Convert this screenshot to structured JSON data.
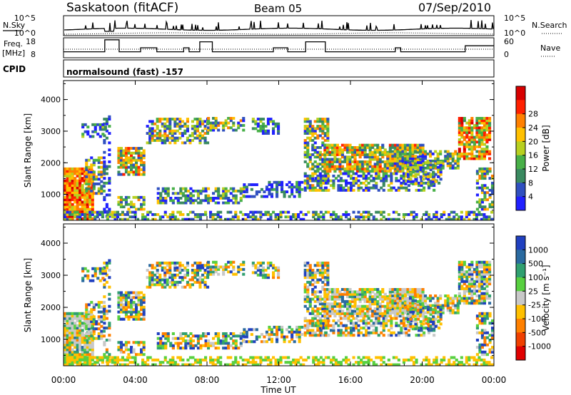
{
  "header": {
    "station": "Saskatoon (fitACF)",
    "beam": "Beam 05",
    "date": "07/Sep/2010"
  },
  "nsky_panel": {
    "left_label": "N.Sky",
    "right_label": "N.Search",
    "left_ticks": [
      "10^5",
      "10^0"
    ],
    "right_ticks": [
      "10^5",
      "10^0"
    ]
  },
  "freq_panel": {
    "left_label_top": "Freq.",
    "left_label_bottom": "[MHz]",
    "right_label": "Nave",
    "left_ticks": [
      "18",
      "8"
    ],
    "right_ticks": [
      "60",
      "0"
    ]
  },
  "cpid": {
    "label": "CPID",
    "text": "normalsound (fast) -157"
  },
  "chart_data": [
    {
      "type": "heatmap",
      "quantity": "power",
      "ylabel": "Slant Range [km]",
      "xlabel": "",
      "ylim": [
        180,
        4600
      ],
      "y_ticks": [
        "1000",
        "2000",
        "3000",
        "4000"
      ],
      "colorbar": {
        "label": "Power [dB]",
        "ticks": [
          "4",
          "8",
          "12",
          "16",
          "20",
          "24",
          "28"
        ],
        "colors": [
          "#2020ff",
          "#3050c0",
          "#3a8a60",
          "#48b048",
          "#b8d020",
          "#ffc000",
          "#ff8000",
          "#ff2000",
          "#d80000"
        ]
      }
    },
    {
      "type": "heatmap",
      "quantity": "velocity",
      "ylabel": "Slant Range [km]",
      "xlabel": "Time UT",
      "ylim": [
        180,
        4600
      ],
      "y_ticks": [
        "1000",
        "2000",
        "3000",
        "4000"
      ],
      "x_ticks": [
        "00:00",
        "04:00",
        "08:00",
        "12:00",
        "16:00",
        "20:00",
        "00:00"
      ],
      "colorbar": {
        "label": "Velocity [m s⁻¹]",
        "ticks": [
          "1000",
          "500",
          "100",
          "25",
          "-25",
          "-100",
          "-500",
          "-1000"
        ],
        "colors": [
          "#2040c0",
          "#2a6aa0",
          "#30a070",
          "#58d040",
          "#c8c8c8",
          "#ffc000",
          "#ff8000",
          "#f04000",
          "#e00000"
        ]
      }
    }
  ]
}
